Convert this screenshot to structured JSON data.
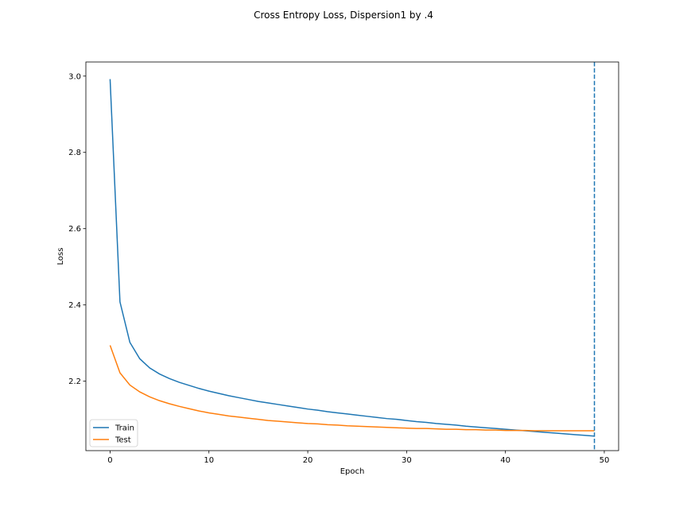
{
  "chart_data": {
    "type": "line",
    "title": "Cross Entropy Loss, Dispersion1 by .4",
    "xlabel": "Epoch",
    "ylabel": "Loss",
    "xlim": [
      -2.45,
      51.45
    ],
    "ylim": [
      2.018,
      3.037
    ],
    "xticks": [
      0,
      10,
      20,
      30,
      40,
      50
    ],
    "xtick_labels": [
      "0",
      "10",
      "20",
      "30",
      "40",
      "50"
    ],
    "yticks": [
      2.2,
      2.4,
      2.6,
      2.8,
      3.0
    ],
    "ytick_labels": [
      "2.2",
      "2.4",
      "2.6",
      "2.8",
      "3.0"
    ],
    "grid": false,
    "legend_position": "lower-left",
    "vline": {
      "x": 49,
      "style": "dashed",
      "color": "#1f77b4"
    },
    "series": [
      {
        "name": "Train",
        "color": "#1f77b4",
        "x": [
          0,
          1,
          2,
          3,
          4,
          5,
          6,
          7,
          8,
          9,
          10,
          11,
          12,
          13,
          14,
          15,
          16,
          17,
          18,
          19,
          20,
          21,
          22,
          23,
          24,
          25,
          26,
          27,
          28,
          29,
          30,
          31,
          32,
          33,
          34,
          35,
          36,
          37,
          38,
          39,
          40,
          41,
          42,
          43,
          44,
          45,
          46,
          47,
          48,
          49
        ],
        "values": [
          2.992,
          2.408,
          2.302,
          2.259,
          2.235,
          2.219,
          2.207,
          2.197,
          2.189,
          2.181,
          2.174,
          2.168,
          2.162,
          2.157,
          2.152,
          2.147,
          2.143,
          2.139,
          2.135,
          2.131,
          2.127,
          2.124,
          2.12,
          2.117,
          2.114,
          2.111,
          2.108,
          2.105,
          2.102,
          2.1,
          2.097,
          2.094,
          2.092,
          2.089,
          2.087,
          2.085,
          2.082,
          2.08,
          2.078,
          2.076,
          2.074,
          2.072,
          2.07,
          2.068,
          2.066,
          2.064,
          2.062,
          2.06,
          2.058,
          2.056
        ]
      },
      {
        "name": "Test",
        "color": "#ff7f0e",
        "x": [
          0,
          1,
          2,
          3,
          4,
          5,
          6,
          7,
          8,
          9,
          10,
          11,
          12,
          13,
          14,
          15,
          16,
          17,
          18,
          19,
          20,
          21,
          22,
          23,
          24,
          25,
          26,
          27,
          28,
          29,
          30,
          31,
          32,
          33,
          34,
          35,
          36,
          37,
          38,
          39,
          40,
          41,
          42,
          43,
          44,
          45,
          46,
          47,
          48,
          49
        ],
        "values": [
          2.294,
          2.222,
          2.19,
          2.172,
          2.159,
          2.149,
          2.141,
          2.134,
          2.128,
          2.122,
          2.117,
          2.113,
          2.109,
          2.106,
          2.103,
          2.1,
          2.097,
          2.095,
          2.093,
          2.091,
          2.089,
          2.088,
          2.086,
          2.085,
          2.083,
          2.082,
          2.081,
          2.08,
          2.079,
          2.078,
          2.077,
          2.076,
          2.076,
          2.075,
          2.074,
          2.074,
          2.073,
          2.073,
          2.072,
          2.072,
          2.071,
          2.071,
          2.071,
          2.07,
          2.07,
          2.07,
          2.07,
          2.07,
          2.07,
          2.07
        ]
      }
    ]
  }
}
